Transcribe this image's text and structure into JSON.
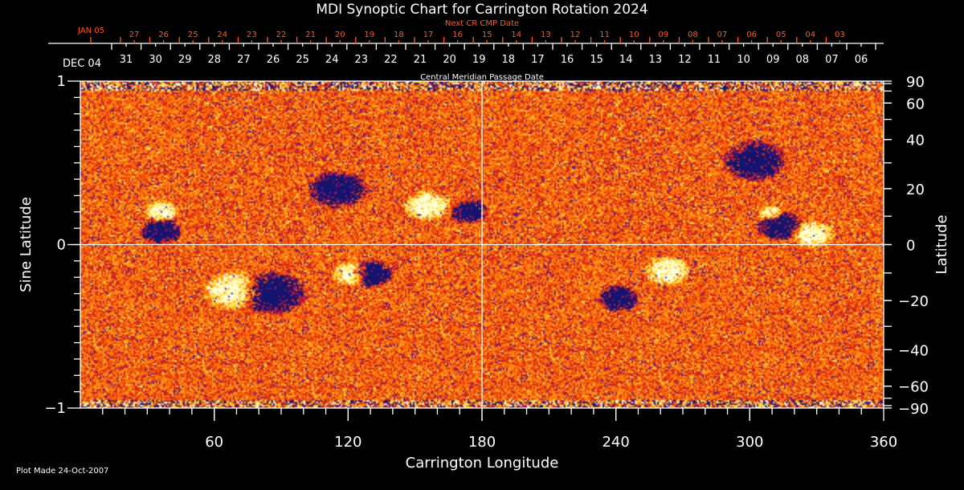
{
  "chart_data": {
    "type": "heatmap",
    "title": "MDI Synoptic Chart for Carrington Rotation 2024",
    "xlabel": "Carrington Longitude",
    "ylabel": "Sine Latitude",
    "y2label": "Latitude",
    "xlim": [
      0,
      360
    ],
    "ylim": [
      -1,
      1
    ],
    "x_ticks": [
      60,
      120,
      180,
      240,
      300,
      360
    ],
    "y_ticks": [
      {
        "v": 1,
        "label": "1"
      },
      {
        "v": 0,
        "label": "0"
      },
      {
        "v": -1,
        "label": "−1"
      }
    ],
    "y2_ticks": [
      {
        "lat": 90,
        "label": "90"
      },
      {
        "lat": 60,
        "label": "60"
      },
      {
        "lat": 40,
        "label": "40"
      },
      {
        "lat": 20,
        "label": "20"
      },
      {
        "lat": 0,
        "label": "0"
      },
      {
        "lat": -20,
        "label": "−20"
      },
      {
        "lat": -40,
        "label": "−40"
      },
      {
        "lat": -60,
        "label": "−60"
      },
      {
        "lat": -90,
        "label": "−90"
      }
    ],
    "top_axis": {
      "title": "Central Meridian Passage Date",
      "start_label": "DEC 04",
      "dates": [
        "31",
        "30",
        "29",
        "28",
        "27",
        "26",
        "25",
        "24",
        "23",
        "22",
        "21",
        "20",
        "19",
        "18",
        "17",
        "16",
        "15",
        "14",
        "13",
        "12",
        "11",
        "10",
        "09",
        "08",
        "07",
        "06"
      ]
    },
    "next_cr_axis": {
      "title": "Next CR CMP Date",
      "start_label": "JAN 05",
      "dates": [
        "27",
        "26",
        "25",
        "24",
        "23",
        "22",
        "21",
        "20",
        "19",
        "18",
        "17",
        "16",
        "15",
        "14",
        "13",
        "12",
        "11",
        "10",
        "09",
        "08",
        "07",
        "06",
        "05",
        "04",
        "03"
      ]
    },
    "active_regions": [
      {
        "lon": 36,
        "lat": 5,
        "polarity": "negative",
        "size": 1
      },
      {
        "lon": 36,
        "lat": 12,
        "polarity": "positive",
        "size": 0.8
      },
      {
        "lon": 86,
        "lat": -17,
        "polarity": "negative",
        "size": 1.6
      },
      {
        "lon": 68,
        "lat": -16,
        "polarity": "positive",
        "size": 1.4
      },
      {
        "lon": 130,
        "lat": -10,
        "polarity": "negative",
        "size": 1
      },
      {
        "lon": 121,
        "lat": -10,
        "polarity": "positive",
        "size": 0.9
      },
      {
        "lon": 115,
        "lat": 20,
        "polarity": "negative",
        "size": 1.4
      },
      {
        "lon": 155,
        "lat": 14,
        "polarity": "positive",
        "size": 1.1
      },
      {
        "lon": 174,
        "lat": 12,
        "polarity": "negative",
        "size": 0.9
      },
      {
        "lon": 263,
        "lat": -9,
        "polarity": "positive",
        "size": 1.1
      },
      {
        "lon": 241,
        "lat": -19,
        "polarity": "negative",
        "size": 1
      },
      {
        "lon": 313,
        "lat": 7,
        "polarity": "negative",
        "size": 1.1
      },
      {
        "lon": 328,
        "lat": 4,
        "polarity": "positive",
        "size": 1
      },
      {
        "lon": 302,
        "lat": 31,
        "polarity": "negative",
        "size": 1.5
      },
      {
        "lon": 309,
        "lat": 11,
        "polarity": "positive",
        "size": 0.6
      }
    ],
    "colors": {
      "background_field": "#ff4a10",
      "positive": "#fffbe0",
      "negative": "#101060",
      "axis": "#ffffff",
      "next_cr": "#ff5a1e"
    }
  },
  "footer": {
    "plot_made": "Plot Made 24-Oct-2007"
  }
}
